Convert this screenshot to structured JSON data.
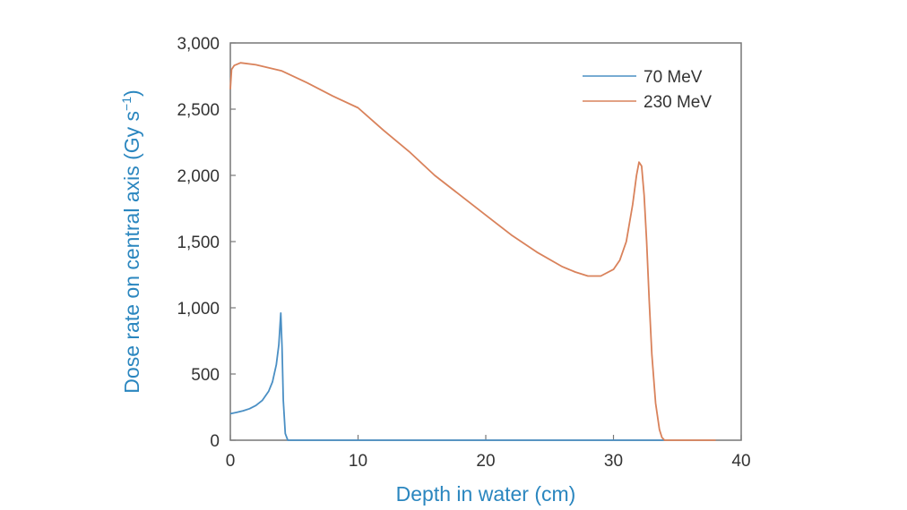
{
  "chart_data": {
    "type": "line",
    "xlabel": "Depth in water (cm)",
    "ylabel_main": "Dose rate on central axis (Gy s",
    "ylabel_sup": "−1",
    "ylabel_close": ")",
    "xlim": [
      0,
      40
    ],
    "ylim": [
      0,
      3000
    ],
    "x_ticks": [
      0,
      10,
      20,
      30,
      40
    ],
    "x_tick_labels": [
      "0",
      "10",
      "20",
      "30",
      "40"
    ],
    "y_ticks": [
      0,
      500,
      1000,
      1500,
      2000,
      2500,
      3000
    ],
    "y_tick_labels": [
      "0",
      "500",
      "1,000",
      "1,500",
      "2,000",
      "2,500",
      "3,000"
    ],
    "grid": false,
    "legend_position": "top-right",
    "series": [
      {
        "name": "70 MeV",
        "color": "#4a8fc4",
        "x": [
          0,
          0.5,
          1,
          1.5,
          2,
          2.5,
          3,
          3.3,
          3.6,
          3.8,
          3.95,
          4.05,
          4.15,
          4.3,
          4.5,
          5,
          10,
          20,
          30,
          34
        ],
        "y": [
          200,
          210,
          222,
          238,
          262,
          300,
          370,
          440,
          570,
          720,
          960,
          700,
          300,
          50,
          0,
          0,
          0,
          0,
          0,
          0
        ]
      },
      {
        "name": "230 MeV",
        "color": "#d9825b",
        "x": [
          0,
          0.1,
          0.3,
          0.8,
          2,
          4,
          6,
          8,
          10,
          12,
          14,
          16,
          18,
          20,
          22,
          24,
          26,
          27,
          28,
          29,
          30,
          30.5,
          31,
          31.5,
          31.8,
          32,
          32.2,
          32.4,
          32.6,
          32.8,
          33,
          33.3,
          33.6,
          33.8,
          34,
          35,
          38
        ],
        "y": [
          2650,
          2800,
          2830,
          2850,
          2835,
          2790,
          2700,
          2600,
          2510,
          2340,
          2180,
          2000,
          1850,
          1700,
          1550,
          1420,
          1310,
          1270,
          1240,
          1240,
          1290,
          1360,
          1500,
          1780,
          2000,
          2100,
          2070,
          1850,
          1500,
          1050,
          650,
          280,
          80,
          20,
          0,
          0,
          0
        ]
      }
    ]
  }
}
